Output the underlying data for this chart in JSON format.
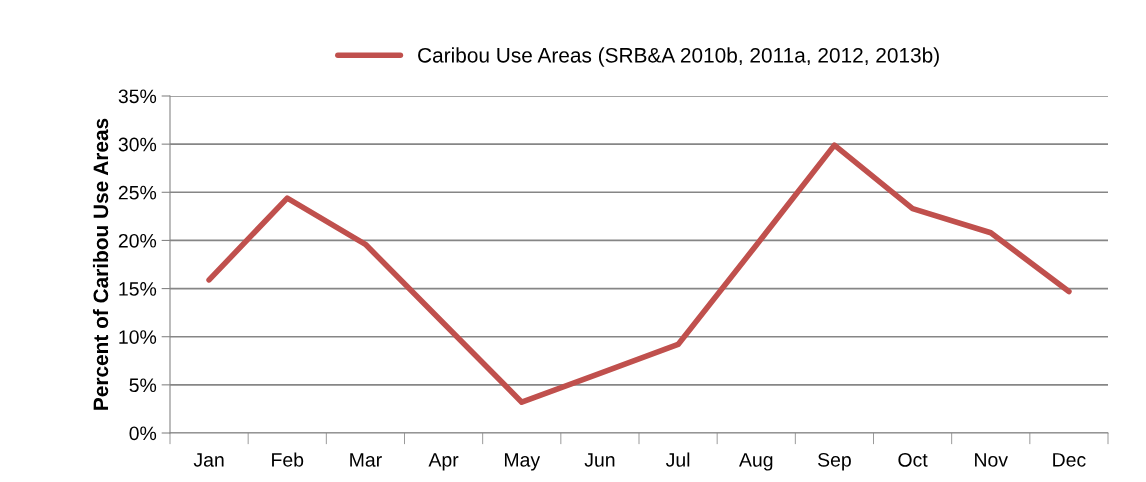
{
  "chart_data": {
    "type": "line",
    "ylabel": "Percent of Caribou Use Areas",
    "categories": [
      "Jan",
      "Feb",
      "Mar",
      "Apr",
      "May",
      "Jun",
      "Jul",
      "Aug",
      "Sep",
      "Oct",
      "Nov",
      "Dec"
    ],
    "series": [
      {
        "name": "Caribou Use Areas (SRB&A 2010b, 2011a, 2012, 2013b)",
        "color": "#c0504d",
        "values": [
          15.9,
          24.4,
          19.6,
          11.4,
          3.2,
          6.2,
          9.2,
          19.5,
          29.9,
          23.3,
          20.8,
          14.7
        ]
      }
    ],
    "ylim": [
      0,
      35
    ],
    "yticks": [
      {
        "value": 0,
        "label": "0%"
      },
      {
        "value": 5,
        "label": "5%"
      },
      {
        "value": 10,
        "label": "10%"
      },
      {
        "value": 15,
        "label": "15%"
      },
      {
        "value": 20,
        "label": "20%"
      },
      {
        "value": 25,
        "label": "25%"
      },
      {
        "value": 30,
        "label": "30%"
      },
      {
        "value": 35,
        "label": "35%"
      }
    ],
    "grid": "y",
    "legend": "top",
    "marker": "none",
    "line_style": "solid"
  }
}
